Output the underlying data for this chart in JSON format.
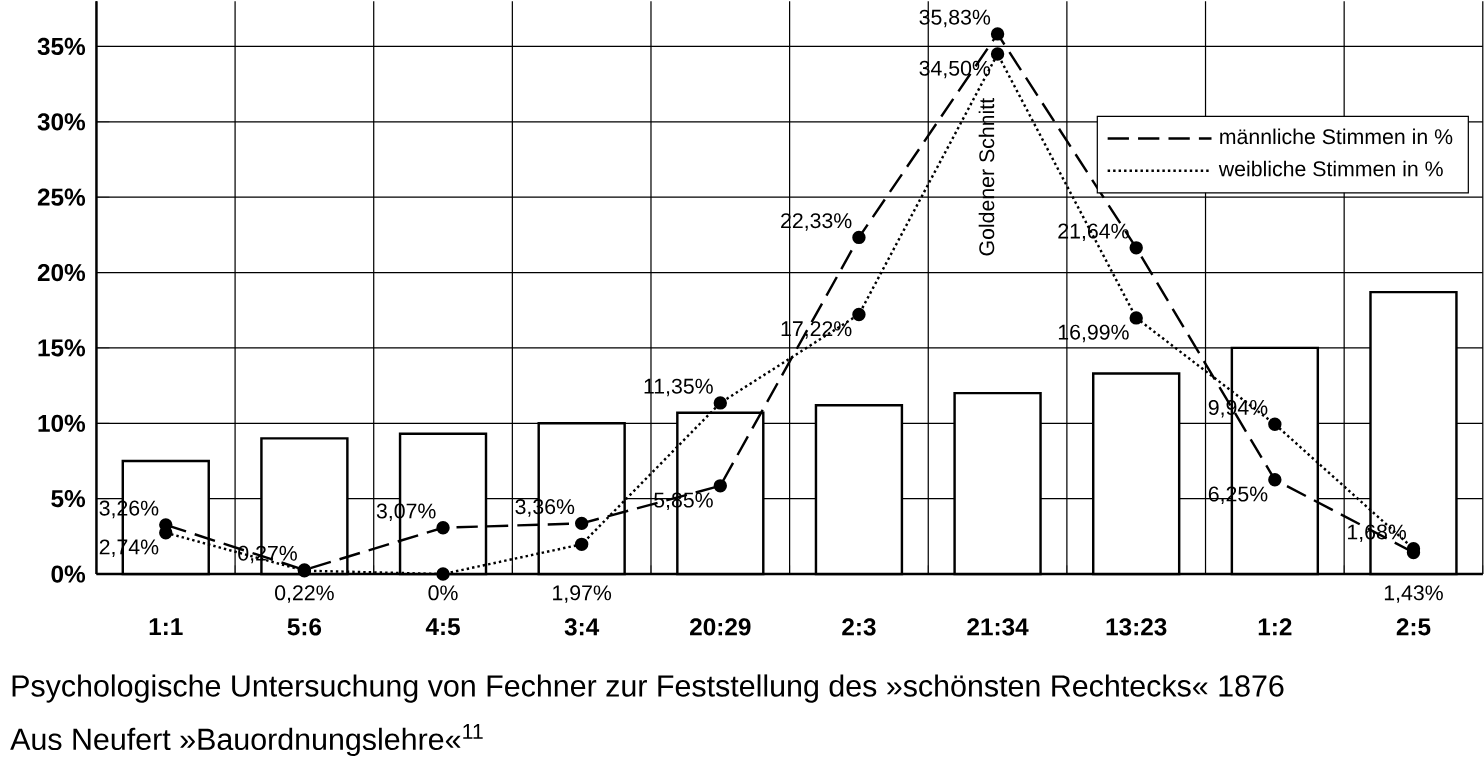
{
  "chart_data": {
    "type": "bar",
    "categories": [
      "1:1",
      "5:6",
      "4:5",
      "3:4",
      "20:29",
      "2:3",
      "21:34",
      "13:23",
      "1:2",
      "2:5"
    ],
    "series": [
      {
        "color": "#ffffff",
        "values": [
          7.5,
          9,
          9.3,
          10,
          10.7,
          11.2,
          12,
          13.3,
          15,
          18.7
        ]
      },
      {
        "type": "line",
        "name": "männliche Stimmen in %",
        "color": "#000000",
        "line_style": "dashed",
        "marker": "circle",
        "values": [
          3.26,
          0.27,
          3.07,
          3.36,
          5.85,
          22.33,
          35.83,
          21.64,
          6.25,
          1.43
        ],
        "value_labels": [
          "3,26%",
          "0,27%",
          "3,07%",
          "3,36%",
          "5,85%",
          "22,33%",
          "35,83%",
          "21,64%",
          "6,25%",
          "1,43%"
        ]
      },
      {
        "type": "line",
        "name": "weibliche Stimmen in %",
        "color": "#000000",
        "line_style": "dotted",
        "marker": "circle",
        "values": [
          2.74,
          0.22,
          0,
          1.97,
          11.35,
          17.22,
          34.5,
          16.99,
          9.94,
          1.68
        ],
        "value_labels": [
          "2,74%",
          "0,22%",
          "0%",
          "1,97%",
          "11,35%",
          "17,22%",
          "34,50%",
          "16,99%",
          "9,94%",
          "1,68%"
        ]
      }
    ],
    "ylim": [
      0,
      38
    ],
    "yticks": [
      {
        "value": 0,
        "label": "0%"
      },
      {
        "value": 5,
        "label": "5%"
      },
      {
        "value": 10,
        "label": "10%"
      },
      {
        "value": 15,
        "label": "15%"
      },
      {
        "value": 20,
        "label": "20%"
      },
      {
        "value": 25,
        "label": "25%"
      },
      {
        "value": 30,
        "label": "30%"
      },
      {
        "value": 35,
        "label": "35%"
      }
    ],
    "grid": true,
    "legend": "top right",
    "annotations": [
      "Goldener Schnitt",
      "Psychologische Untersuchung von Fechner zur Feststellung des »schönsten Rechtecks« 1876",
      "Aus Neufert »Bauordnungslehre«$^{11}$"
    ]
  }
}
